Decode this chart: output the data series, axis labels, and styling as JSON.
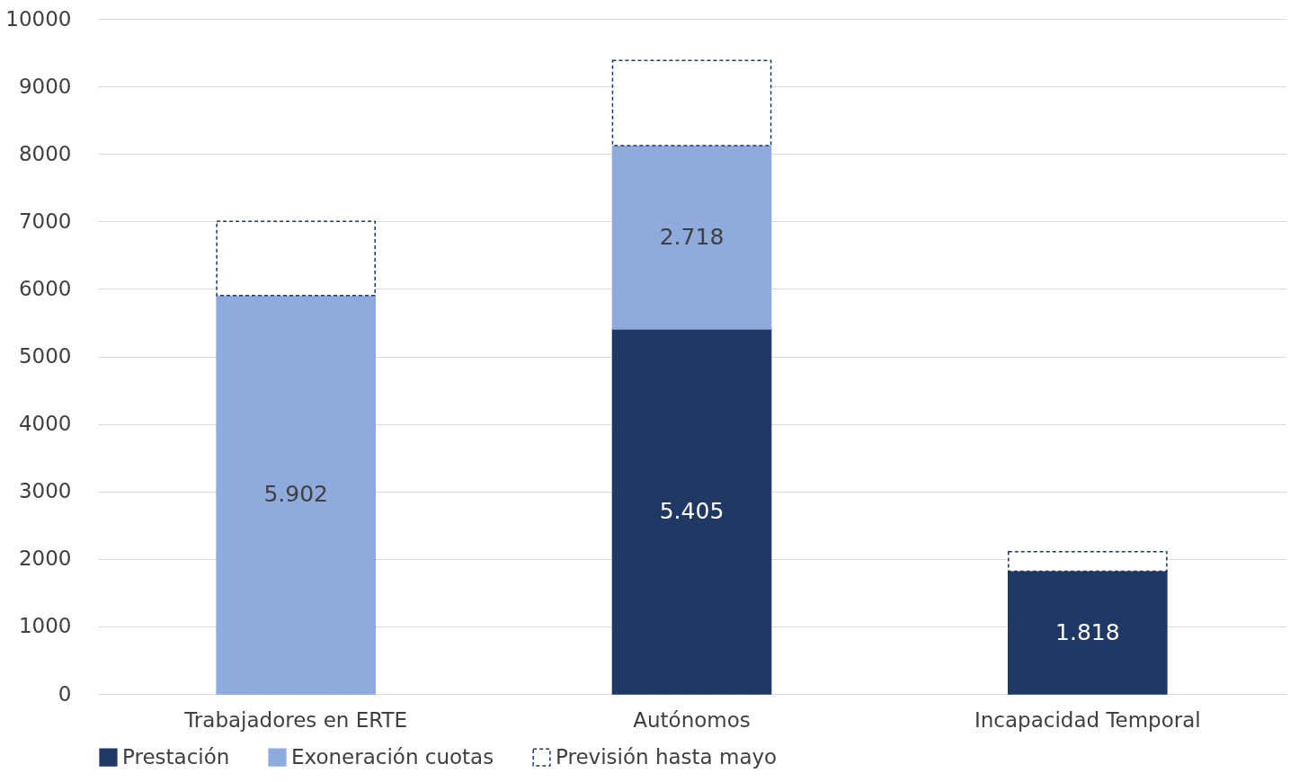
{
  "chart_data": {
    "type": "bar",
    "stacked": true,
    "categories": [
      "Trabajadores en ERTE",
      "Autónomos",
      "Incapacidad Temporal"
    ],
    "series": [
      {
        "name": "Prestación",
        "color": "#203864",
        "values": [
          null,
          5405,
          1818
        ],
        "value_labels": [
          null,
          "5.405",
          "1.818"
        ]
      },
      {
        "name": "Exoneración cuotas",
        "color": "#8faadc",
        "values": [
          5902,
          2718,
          null
        ],
        "value_labels": [
          "5.902",
          "2.718",
          null
        ]
      },
      {
        "name": "Previsión hasta mayo",
        "color": "#ffffff",
        "line_style": "dashed",
        "values": [
          1100,
          1260,
          290
        ]
      }
    ],
    "ylim": [
      0,
      10000
    ],
    "yticks": [
      0,
      1000,
      2000,
      3000,
      4000,
      5000,
      6000,
      7000,
      8000,
      9000,
      10000
    ],
    "grid": "y",
    "legend": "bottom"
  }
}
